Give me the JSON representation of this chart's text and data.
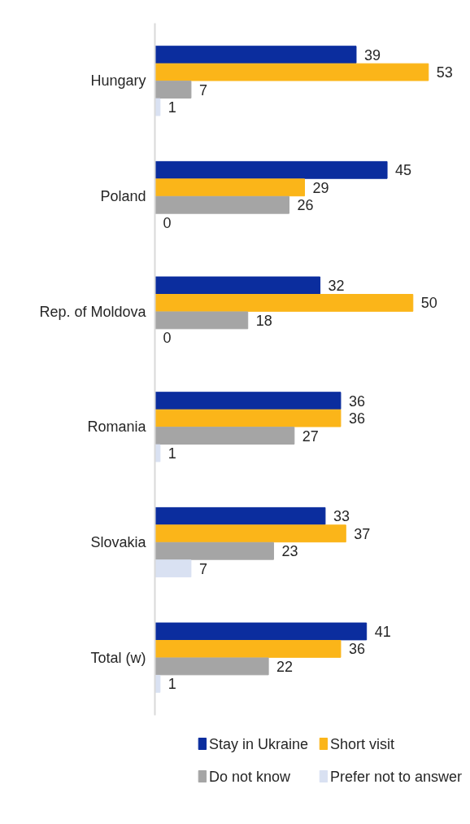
{
  "chart_data": {
    "type": "bar",
    "orientation": "horizontal",
    "categories": [
      "Hungary",
      "Poland",
      "Rep. of Moldova",
      "Romania",
      "Slovakia",
      "Total (w)"
    ],
    "series": [
      {
        "name": "Stay in Ukraine",
        "color": "#0b2d9e",
        "values": [
          39,
          45,
          32,
          36,
          33,
          41
        ]
      },
      {
        "name": "Short visit",
        "color": "#fbb519",
        "values": [
          53,
          29,
          50,
          36,
          37,
          36
        ]
      },
      {
        "name": "Do not know",
        "color": "#a5a5a5",
        "values": [
          7,
          26,
          18,
          27,
          23,
          22
        ]
      },
      {
        "name": "Prefer not to answer",
        "color": "#d9e1f2",
        "values": [
          1,
          0,
          0,
          1,
          7,
          1
        ]
      }
    ],
    "data_labels": true,
    "legend": "bottom",
    "tick_labels": "y"
  }
}
